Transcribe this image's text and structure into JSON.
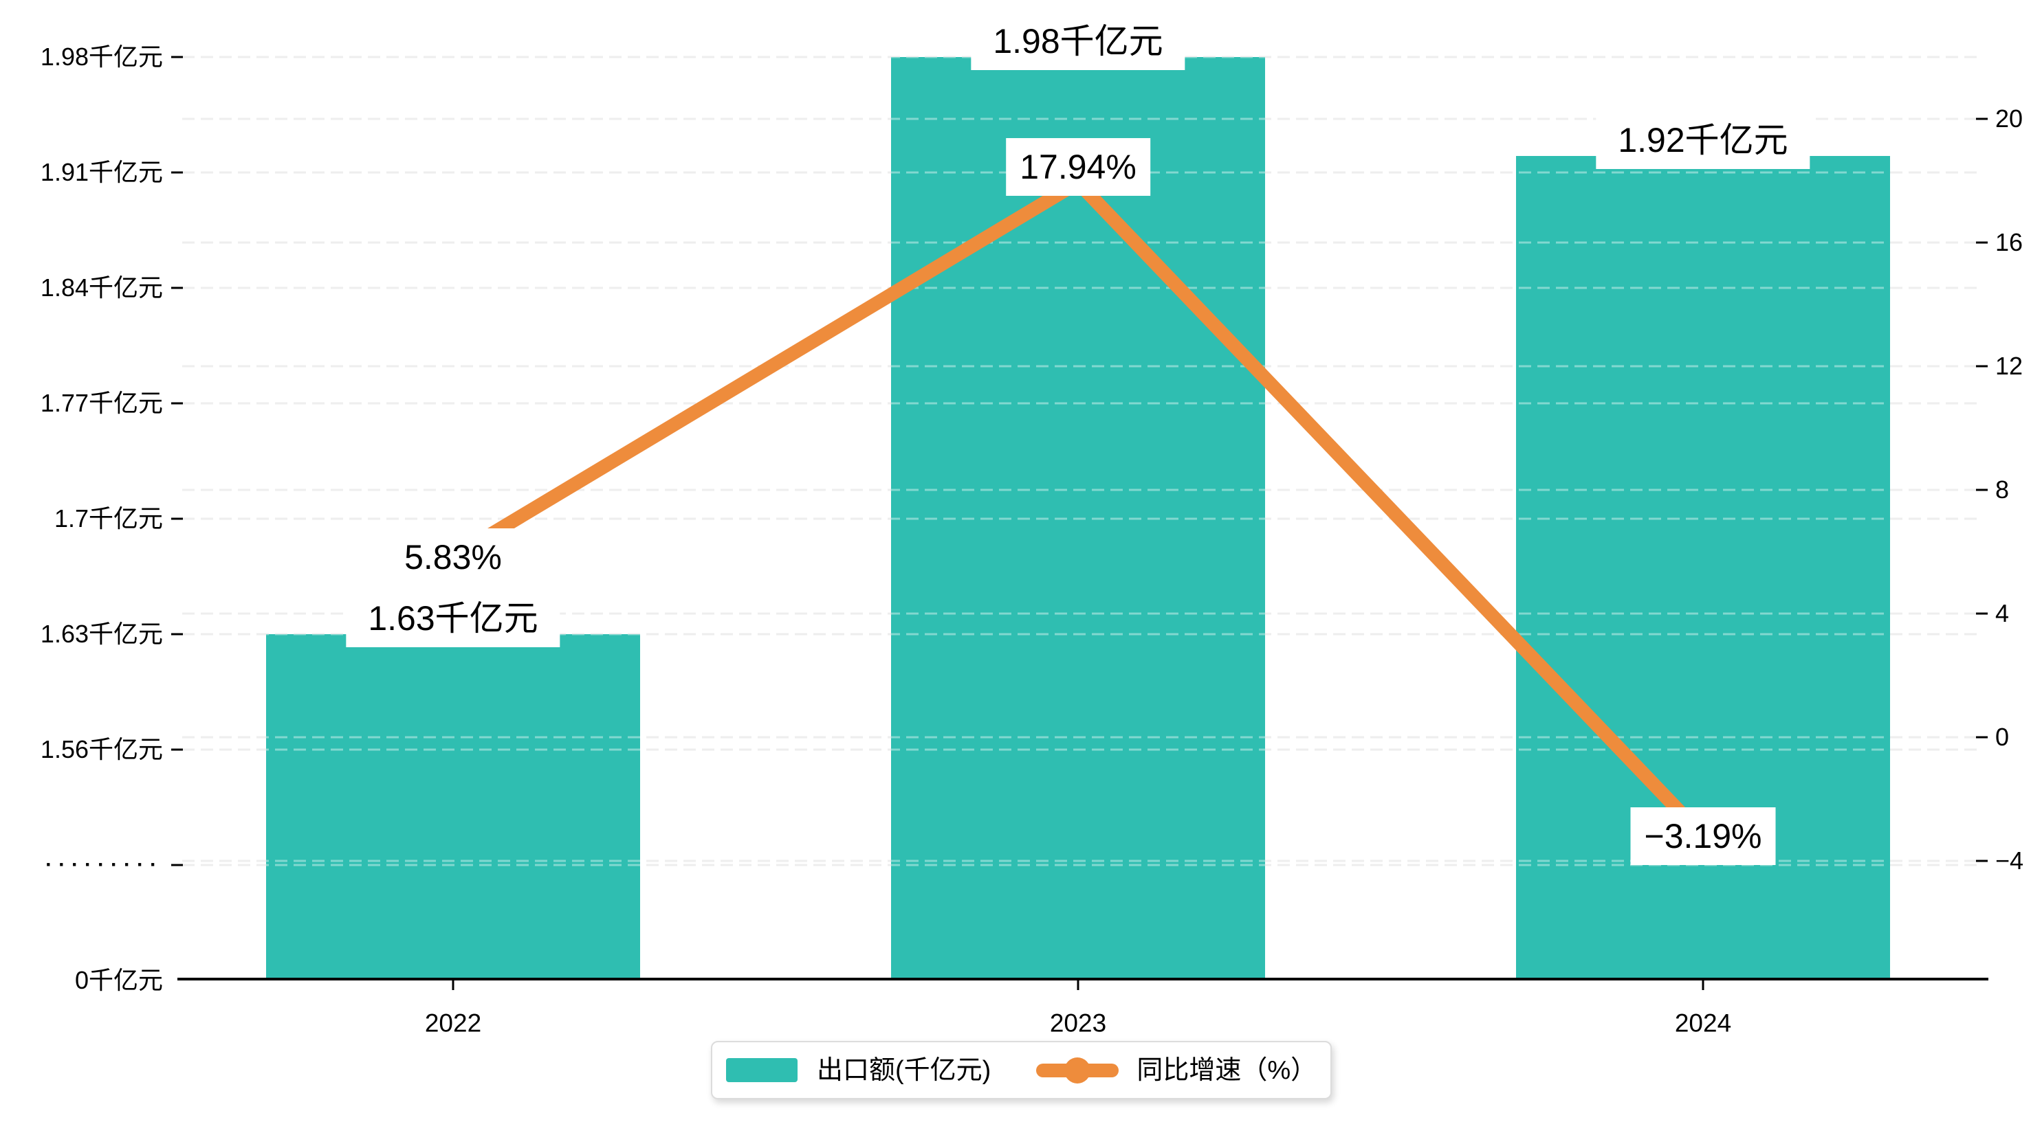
{
  "chart_data": {
    "type": "combo",
    "categories": [
      "2022",
      "2023",
      "2024"
    ],
    "series": [
      {
        "name": "出口额(千亿元)",
        "type": "bar",
        "color": "#2FBEB1",
        "values": [
          1.63,
          1.98,
          1.92
        ],
        "labels": [
          "1.63千亿元",
          "1.98千亿元",
          "1.92千亿元"
        ]
      },
      {
        "name": "同比增速（%）",
        "type": "line",
        "color": "#EE8C3C",
        "values": [
          5.83,
          17.94,
          -3.19
        ],
        "labels": [
          "5.83%",
          "17.94%",
          "−3.19%"
        ]
      }
    ],
    "left_axis": {
      "unit": "千亿元",
      "tick_labels": [
        "1.98千亿元",
        "1.91千亿元",
        "1.84千亿元",
        "1.77千亿元",
        "1.7千亿元",
        "1.63千亿元",
        "1.56千亿元",
        "·········",
        "0千亿元"
      ],
      "broken_axis": true
    },
    "right_axis": {
      "tick_labels": [
        "20",
        "16",
        "12",
        "8",
        "4",
        "0",
        "−4"
      ],
      "max": 20,
      "min": -4,
      "step": 4
    },
    "legend_position": "bottom",
    "grid": true,
    "background": "#FFFFFF",
    "gridline_color": "#E3E3E3",
    "axis_color": "#000000"
  }
}
